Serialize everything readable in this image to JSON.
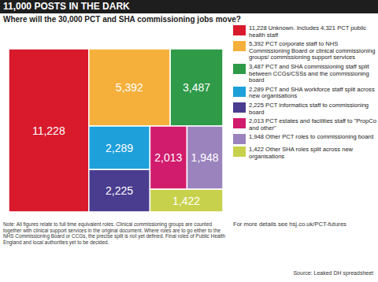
{
  "chart_data": {
    "type": "treemap",
    "title": "11,000 POSTS IN THE DARK",
    "subtitle": "Where will the 30,000 PCT and SHA commissioning jobs move?",
    "categories": [
      "11,228 Unknown. Includes 4,321 PCT public health staff",
      "5,392 PCT corporate staff to NHS Commissioning Board or clinical commissioning groups/ commissioning support services",
      "3,487 PCT and SHA commissioning staff split between CCGs/CSSs and the commissioning board",
      "2,289 PCT and SHA workforce staff split across new organisations",
      "2,225 PCT informatics staff to commissioning board",
      "2,013 PCT estates and facilities staff to \"PropCo and other\"",
      "1,948 Other PCT roles to commissioning board",
      "1,422 Other SHA roles split across new organisations"
    ],
    "values": [
      11228,
      5392,
      3487,
      2289,
      2225,
      2013,
      1948,
      1422
    ],
    "value_labels": [
      "11,228",
      "5,392",
      "3,487",
      "2,289",
      "2,225",
      "2,013",
      "1,948",
      "1,422"
    ],
    "colors": [
      "#d81a2c",
      "#f5b03b",
      "#2f9a48",
      "#1ea0da",
      "#4a3d8f",
      "#d11b6d",
      "#9b83bd",
      "#c8d14b"
    ],
    "data_labels": true,
    "legend": "right",
    "note": "Note: All figures relate to full time equivalent roles. Clinical commissioning groups are counted together with clinical support services in the original document. Where roles are to go either to the NHS Commissioning Board or CCGs, the precise split is not yet defined. Final roles of Public Health England and local authorities yet to be decided.",
    "more_details": "For more details see hsj.co.uk/PCT-futures",
    "source": "Source: Leaked DH spreadsheet"
  }
}
